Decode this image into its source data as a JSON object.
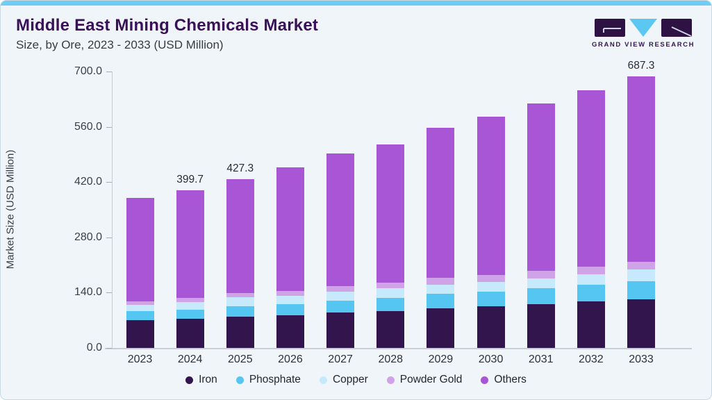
{
  "header": {
    "title": "Middle East Mining Chemicals Market",
    "subtitle": "Size, by Ore, 2023 - 2033 (USD Million)",
    "logo_text": "GRAND VIEW RESEARCH"
  },
  "colors": {
    "accent_topbar": "#6fcdf3",
    "title_purple": "#3a1058",
    "logo_dark": "#2e1243",
    "logo_blue": "#5ac8f0",
    "card_background": "#eff5f9"
  },
  "chart_data": {
    "type": "bar",
    "stacked": true,
    "title": "Middle East Mining Chemicals Market Size, by Ore, 2023 - 2033 (USD Million)",
    "categories": [
      "2023",
      "2024",
      "2025",
      "2026",
      "2027",
      "2028",
      "2029",
      "2030",
      "2031",
      "2032",
      "2033"
    ],
    "series": [
      {
        "name": "Iron",
        "color": "#33154d",
        "values": [
          69.7,
          74.6,
          79.5,
          82.4,
          89.7,
          92.8,
          100.1,
          105.0,
          111.0,
          117.0,
          122.9
        ]
      },
      {
        "name": "Phosphate",
        "color": "#55c6f2",
        "values": [
          23.1,
          22.4,
          25.5,
          28.6,
          30.4,
          33.3,
          36.4,
          37.5,
          39.5,
          42.6,
          45.1
        ]
      },
      {
        "name": "Copper",
        "color": "#c6eafc",
        "values": [
          16.4,
          18.9,
          22.9,
          21.3,
          23.1,
          24.4,
          24.2,
          25.0,
          25.5,
          27.3,
          30.4
        ]
      },
      {
        "name": "Powder Gold",
        "color": "#d0a3e9",
        "values": [
          9.0,
          10.2,
          11.0,
          12.5,
          13.3,
          15.1,
          17.1,
          18.0,
          18.7,
          19.0,
          19.5
        ]
      },
      {
        "name": "Others",
        "color": "#a855d6",
        "values": [
          261.0,
          273.6,
          288.4,
          312.0,
          336.6,
          350.6,
          380.3,
          399.9,
          424.5,
          446.8,
          469.4
        ]
      }
    ],
    "totals": [
      379.2,
      399.7,
      427.3,
      456.8,
      493.1,
      516.2,
      558.1,
      585.4,
      619.2,
      652.7,
      687.3
    ],
    "bar_labels": {
      "2024": "399.7",
      "2025": "427.3",
      "2033": "687.3"
    },
    "xlabel": "",
    "ylabel": "Market Size (USD Million)",
    "yticks": [
      "0.0",
      "140.0",
      "280.0",
      "420.0",
      "560.0",
      "700.0"
    ],
    "ylim": [
      0,
      700
    ],
    "grid": false,
    "legend_position": "bottom"
  }
}
